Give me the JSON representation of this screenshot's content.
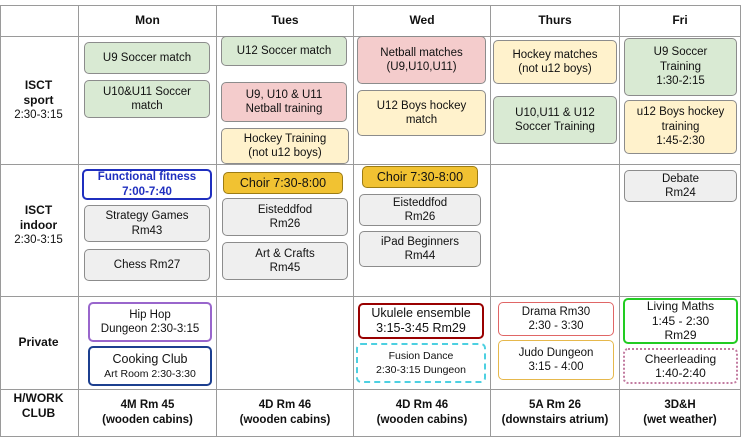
{
  "days": [
    "Mon",
    "Tues",
    "Wed",
    "Thurs",
    "Fri"
  ],
  "rows": {
    "sport": {
      "title": "ISCT",
      "sub1": "sport",
      "sub2": "2:30-3:15"
    },
    "indoor": {
      "title": "ISCT",
      "sub1": "indoor",
      "sub2": "2:30-3:15"
    },
    "private": {
      "title": "Private"
    },
    "homework": {
      "title": "H/WORK",
      "sub1": "CLUB"
    }
  },
  "activities": {
    "mon": {
      "u9_soccer": "U9 Soccer match",
      "u10_u11_soccer": "U10&U11 Soccer\nmatch",
      "functional_fitness": "Functional fitness\n7:00-7:40",
      "strategy_games": "Strategy Games\nRm43",
      "chess": "Chess  Rm27",
      "hip_hop": "Hip Hop\nDungeon 2:30-3:15",
      "cooking_title": "Cooking Club",
      "cooking_detail": "Art Room 2:30-3:30"
    },
    "tues": {
      "u12_soccer": "U12 Soccer match",
      "netball_training": "U9, U10 & U11\nNetball training",
      "hockey_training": "Hockey Training\n(not u12 boys)",
      "choir": "Choir 7:30-8:00",
      "eisteddfod": "Eisteddfod\nRm26",
      "art_crafts": "Art & Crafts\nRm45"
    },
    "wed": {
      "netball_matches": "Netball matches\n(U9,U10,U11)",
      "u12_hockey": "U12 Boys hockey\nmatch",
      "choir": "Choir 7:30-8:00",
      "eisteddfod": "Eisteddfod\nRm26",
      "ipad": "iPad Beginners\nRm44",
      "ukulele": "Ukulele ensemble\n3:15-3:45  Rm29",
      "fusion_dance": "Fusion Dance\n2:30-3:15 Dungeon"
    },
    "thurs": {
      "hockey_matches": "Hockey matches\n(not u12 boys)",
      "soccer_training": "U10,U11 & U12\nSoccer Training",
      "drama": "Drama Rm30\n2:30 - 3:30",
      "judo": "Judo Dungeon\n3:15 - 4:00"
    },
    "fri": {
      "u9_soccer_training": "U9 Soccer\nTraining\n1:30-2:15",
      "u12_hockey_training": "u12 Boys hockey\ntraining\n1:45-2:30",
      "debate": "Debate\nRm24",
      "living_maths": "Living Maths\n1:45 - 2:30\nRm29",
      "cheerleading": "Cheerleading\n1:40-2:40"
    }
  },
  "homework_club": [
    {
      "room": "4M Rm 45",
      "place": "(wooden cabins)"
    },
    {
      "room": "4D Rm 46",
      "place": "(wooden cabins)"
    },
    {
      "room": "4D Rm 46",
      "place": "(wooden cabins)"
    },
    {
      "room": "5A Rm 26",
      "place": "(downstairs atrium)"
    },
    {
      "room": "3D&H",
      "place": "(wet weather)"
    }
  ],
  "colors": {
    "sport_green": "#d9ead3",
    "netball_red": "#f4cccc",
    "hockey_yellow": "#fff2cc",
    "indoor_gray": "#efefef",
    "choir_gold": "#f1c232",
    "fitness_blue": "#1f2fbf",
    "hiphop_purple": "#9966cc",
    "cooking_blue": "#1c3f8f",
    "ukulele_red": "#990000",
    "fusion_cyan": "#4dd0e1",
    "drama_red": "#e06666",
    "judo_gold": "#e6b84c",
    "living_maths_green": "#22cc22",
    "cheer_pink": "#c27ba0"
  }
}
